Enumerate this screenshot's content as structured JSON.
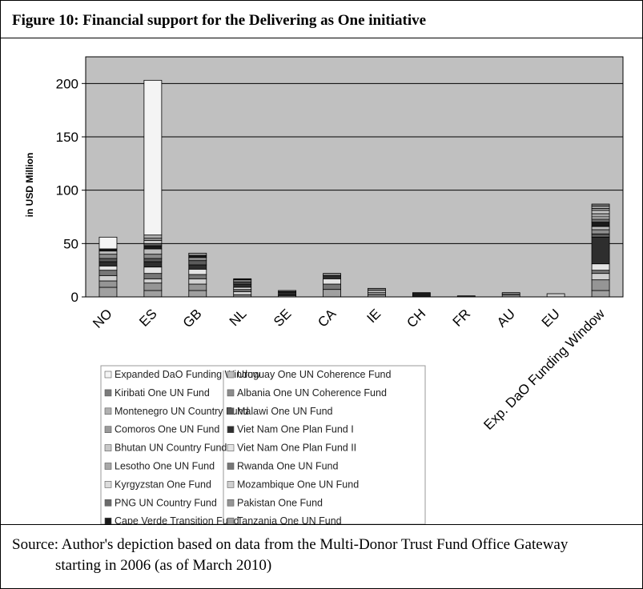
{
  "chart_data": {
    "type": "stacked_bar",
    "title": "Figure 10:  Financial support for the Delivering as One initiative",
    "y_label": "in USD Million",
    "source": "Source: Author's depiction based on data from the Multi-Donor Trust Fund Office Gateway starting in 2006 (as of March 2010)",
    "categories": [
      "NO",
      "ES",
      "GB",
      "NL",
      "SE",
      "CA",
      "IE",
      "CH",
      "FR",
      "AU",
      "EU",
      "Exp. DaO Funding Window"
    ],
    "ylim": [
      0,
      225
    ],
    "yticks": [
      0,
      50,
      100,
      150,
      200
    ],
    "grid": true,
    "series": [
      {
        "name": "Expanded DaO Funding Window",
        "color": "#f4f4f4",
        "values": [
          11,
          145,
          0,
          0,
          0,
          0,
          0,
          0,
          0,
          0,
          0,
          0
        ]
      },
      {
        "name": "Kiribati One UN Fund",
        "color": "#7a7a7a",
        "values": [
          0,
          0,
          0,
          0,
          0,
          0,
          0,
          0,
          0,
          0,
          0,
          2
        ]
      },
      {
        "name": "Montenegro UN Country Fund",
        "color": "#b0b0b0",
        "values": [
          0,
          3,
          0,
          0,
          0,
          0,
          0,
          0,
          0,
          0,
          0,
          2
        ]
      },
      {
        "name": "Comoros One UN Fund",
        "color": "#9a9a9a",
        "values": [
          0,
          2,
          0,
          0,
          0,
          0,
          0,
          0,
          0,
          0,
          0,
          2
        ]
      },
      {
        "name": "Bhutan UN Country Fund",
        "color": "#c8c8c8",
        "values": [
          0,
          3,
          0,
          0,
          0,
          0,
          0,
          0,
          0,
          0,
          0,
          3
        ]
      },
      {
        "name": "Lesotho One UN Fund",
        "color": "#a8a8a8",
        "values": [
          0,
          0,
          2,
          0,
          0,
          0,
          0,
          0,
          0,
          0,
          0,
          3
        ]
      },
      {
        "name": "Kyrgyzstan One Fund",
        "color": "#dcdcdc",
        "values": [
          0,
          0,
          0,
          0,
          0,
          0,
          0,
          0,
          0,
          0,
          0,
          2
        ]
      },
      {
        "name": "PNG UN Country Fund",
        "color": "#6a6a6a",
        "values": [
          0,
          2,
          0,
          0,
          0,
          0,
          0,
          0,
          0,
          0,
          0,
          3
        ]
      },
      {
        "name": "Cape Verde Transition Fund",
        "color": "#1a1a1a",
        "values": [
          2,
          3,
          2,
          1,
          0,
          0,
          0,
          4,
          0,
          0,
          0,
          4
        ]
      },
      {
        "name": "Uruguay One UN Coherence Fund",
        "color": "#bdbdbd",
        "values": [
          3,
          5,
          0,
          0,
          0,
          0,
          0,
          0,
          0,
          0,
          0,
          3
        ]
      },
      {
        "name": "Albania One UN Coherence Fund",
        "color": "#8c8c8c",
        "values": [
          4,
          4,
          3,
          2,
          1,
          2,
          0,
          0,
          0,
          0,
          0,
          4
        ]
      },
      {
        "name": "Malawi One UN Fund",
        "color": "#5a5a5a",
        "values": [
          3,
          3,
          4,
          2,
          1,
          0,
          0,
          0,
          0,
          0,
          0,
          3
        ]
      },
      {
        "name": "Viet Nam One Plan Fund I",
        "color": "#2e2e2e",
        "values": [
          4,
          5,
          4,
          3,
          2,
          3,
          0,
          0,
          1,
          0,
          0,
          25
        ]
      },
      {
        "name": "Viet Nam One Plan Fund II",
        "color": "#e4e4e4",
        "values": [
          4,
          6,
          5,
          2,
          0,
          5,
          0,
          0,
          0,
          1,
          0,
          6
        ]
      },
      {
        "name": "Rwanda One UN Fund",
        "color": "#777777",
        "values": [
          5,
          5,
          4,
          2,
          1,
          5,
          2,
          0,
          0,
          0,
          0,
          3
        ]
      },
      {
        "name": "Mozambique One UN Fund",
        "color": "#d0d0d0",
        "values": [
          5,
          4,
          5,
          3,
          1,
          0,
          2,
          0,
          0,
          1,
          3,
          6
        ]
      },
      {
        "name": "Pakistan One Fund",
        "color": "#959595",
        "values": [
          6,
          7,
          6,
          2,
          0,
          0,
          2,
          0,
          0,
          2,
          0,
          10
        ]
      },
      {
        "name": "Tanzania One UN Fund",
        "color": "#a0a0a0",
        "values": [
          9,
          6,
          6,
          0,
          0,
          7,
          2,
          0,
          0,
          0,
          0,
          6
        ]
      }
    ]
  }
}
